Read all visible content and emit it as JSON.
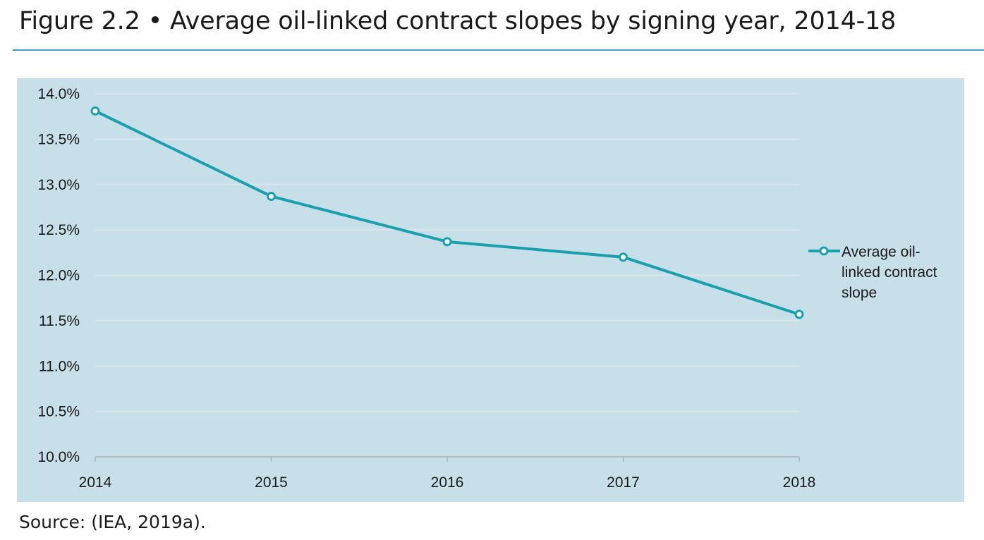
{
  "figure": {
    "title": "Figure 2.2 • Average oil-linked contract slopes by signing year, 2014-18",
    "source": "Source: (IEA, 2019a)."
  },
  "colors": {
    "line": "#1a9fae",
    "panel": "#c7dfe9",
    "grid": "#dbe6ea",
    "title_rule": "#3aa0c8"
  },
  "chart_data": {
    "type": "line",
    "title": "",
    "xlabel": "",
    "ylabel": "",
    "categories": [
      "2014",
      "2015",
      "2016",
      "2017",
      "2018"
    ],
    "series": [
      {
        "name": "Average oil-linked contract slope",
        "legend_lines": [
          "Average oil-",
          "linked contract",
          "slope"
        ],
        "values": [
          13.81,
          12.87,
          12.37,
          12.2,
          11.57
        ]
      }
    ],
    "ylim": [
      10.0,
      14.0
    ],
    "yticks": [
      10.0,
      10.5,
      11.0,
      11.5,
      12.0,
      12.5,
      13.0,
      13.5,
      14.0
    ],
    "ytick_labels": [
      "10.0%",
      "10.5%",
      "11.0%",
      "11.5%",
      "12.0%",
      "12.5%",
      "13.0%",
      "13.5%",
      "14.0%"
    ],
    "grid": true,
    "legend": "right"
  }
}
